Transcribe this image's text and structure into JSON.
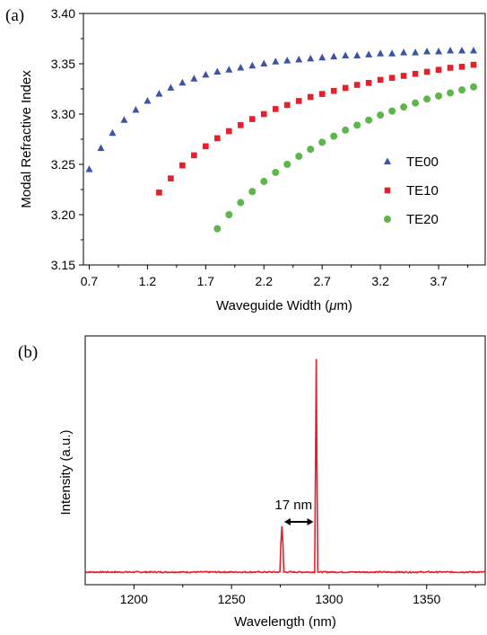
{
  "chart_data": [
    {
      "type": "scatter",
      "panel_label": "(a)",
      "xlabel_main": "Waveguide Width (",
      "xlabel_unit": "μ",
      "xlabel_end": "m)",
      "ylabel": "Modal Refractive Index",
      "xlim": [
        0.65,
        4.1
      ],
      "ylim": [
        3.15,
        3.4
      ],
      "x_ticks": [
        "0.7",
        "1.2",
        "1.7",
        "2.2",
        "2.7",
        "3.2",
        "3.7"
      ],
      "y_ticks": [
        "3.15",
        "3.20",
        "3.25",
        "3.30",
        "3.35",
        "3.40"
      ],
      "legend_position": "right",
      "colors": {
        "TE00": "#3b54a4",
        "TE10": "#e5202a",
        "TE20": "#5db64a"
      },
      "series": [
        {
          "name": "TE00",
          "marker": "triangle",
          "x": [
            0.7,
            0.8,
            0.9,
            1.0,
            1.1,
            1.2,
            1.3,
            1.4,
            1.5,
            1.6,
            1.7,
            1.8,
            1.9,
            2.0,
            2.1,
            2.2,
            2.3,
            2.4,
            2.5,
            2.6,
            2.7,
            2.8,
            2.9,
            3.0,
            3.1,
            3.2,
            3.3,
            3.4,
            3.5,
            3.6,
            3.7,
            3.8,
            3.9,
            4.0
          ],
          "y": [
            3.245,
            3.266,
            3.281,
            3.294,
            3.304,
            3.313,
            3.32,
            3.326,
            3.331,
            3.335,
            3.339,
            3.342,
            3.344,
            3.346,
            3.348,
            3.35,
            3.352,
            3.353,
            3.354,
            3.355,
            3.356,
            3.357,
            3.358,
            3.358,
            3.359,
            3.36,
            3.36,
            3.361,
            3.361,
            3.362,
            3.362,
            3.363,
            3.363,
            3.363
          ]
        },
        {
          "name": "TE10",
          "marker": "square",
          "x": [
            1.3,
            1.4,
            1.5,
            1.6,
            1.7,
            1.8,
            1.9,
            2.0,
            2.1,
            2.2,
            2.3,
            2.4,
            2.5,
            2.6,
            2.7,
            2.8,
            2.9,
            3.0,
            3.1,
            3.2,
            3.3,
            3.4,
            3.5,
            3.6,
            3.7,
            3.8,
            3.9,
            4.0
          ],
          "y": [
            3.222,
            3.236,
            3.249,
            3.259,
            3.268,
            3.276,
            3.283,
            3.289,
            3.295,
            3.3,
            3.305,
            3.309,
            3.313,
            3.317,
            3.32,
            3.323,
            3.326,
            3.329,
            3.331,
            3.334,
            3.336,
            3.338,
            3.34,
            3.342,
            3.344,
            3.346,
            3.347,
            3.349
          ]
        },
        {
          "name": "TE20",
          "marker": "circle",
          "x": [
            1.8,
            1.9,
            2.0,
            2.1,
            2.2,
            2.3,
            2.4,
            2.5,
            2.6,
            2.7,
            2.8,
            2.9,
            3.0,
            3.1,
            3.2,
            3.3,
            3.4,
            3.5,
            3.6,
            3.7,
            3.8,
            3.9,
            4.0
          ],
          "y": [
            3.186,
            3.2,
            3.212,
            3.223,
            3.233,
            3.242,
            3.25,
            3.258,
            3.265,
            3.272,
            3.278,
            3.284,
            3.289,
            3.294,
            3.299,
            3.303,
            3.307,
            3.311,
            3.315,
            3.318,
            3.321,
            3.324,
            3.327
          ]
        }
      ]
    },
    {
      "type": "line",
      "panel_label": "(b)",
      "xlabel": "Wavelength (nm)",
      "ylabel": "Intensity (a.u.)",
      "xlim": [
        1175,
        1380
      ],
      "ylim": [
        0,
        1.0
      ],
      "x_ticks": [
        "1200",
        "1250",
        "1300",
        "1350"
      ],
      "y_ticks_visible": false,
      "color": "#e5202a",
      "series": [
        {
          "name": "",
          "x": [
            1175,
            1274.8,
            1275.3,
            1275.8,
            1276.3,
            1276.8,
            1292.6,
            1293.0,
            1293.4,
            1293.8,
            1294.2,
            1380
          ],
          "y": [
            0.012,
            0.012,
            0.14,
            0.21,
            0.14,
            0.012,
            0.012,
            0.45,
            0.94,
            0.45,
            0.012,
            0.012
          ]
        }
      ],
      "noise_level": 0.012,
      "annotation": {
        "text": "17 nm",
        "x_from": 1277,
        "x_to": 1292
      }
    }
  ]
}
